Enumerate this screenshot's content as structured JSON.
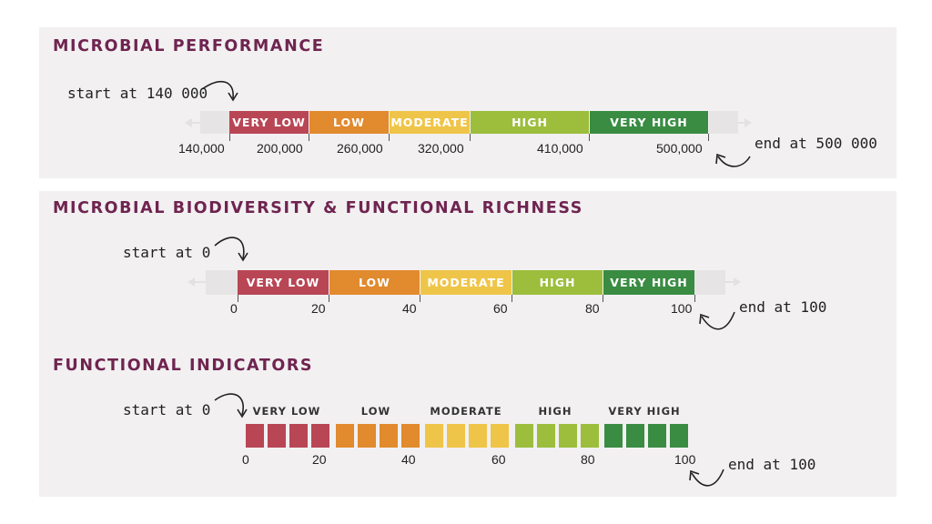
{
  "colors": {
    "very_low": "#b94655",
    "low": "#e18a2e",
    "moderate": "#efc549",
    "high": "#9cbe3c",
    "very_high": "#3a8c43",
    "title": "#6f2450"
  },
  "sections": [
    {
      "title": "MICROBIAL PERFORMANCE",
      "start_note": "start at 140 000",
      "end_note": "end at 500 000",
      "categories": [
        "VERY LOW",
        "LOW",
        "MODERATE",
        "HIGH",
        "VERY HIGH"
      ],
      "ticks": [
        "140,000",
        "200,000",
        "260,000",
        "320,000",
        "410,000",
        "500,000"
      ]
    },
    {
      "title": "MICROBIAL BIODIVERSITY & FUNCTIONAL RICHNESS",
      "start_note": "start at 0",
      "end_note": "end at 100",
      "categories": [
        "VERY LOW",
        "LOW",
        "MODERATE",
        "HIGH",
        "VERY HIGH"
      ],
      "ticks": [
        "0",
        "20",
        "40",
        "60",
        "80",
        "100"
      ]
    },
    {
      "title": "FUNCTIONAL INDICATORS",
      "start_note": "start at 0",
      "end_note": "end at 100",
      "categories": [
        "VERY LOW",
        "LOW",
        "MODERATE",
        "HIGH",
        "VERY HIGH"
      ],
      "ticks": [
        "0",
        "20",
        "40",
        "60",
        "80",
        "100"
      ]
    }
  ]
}
